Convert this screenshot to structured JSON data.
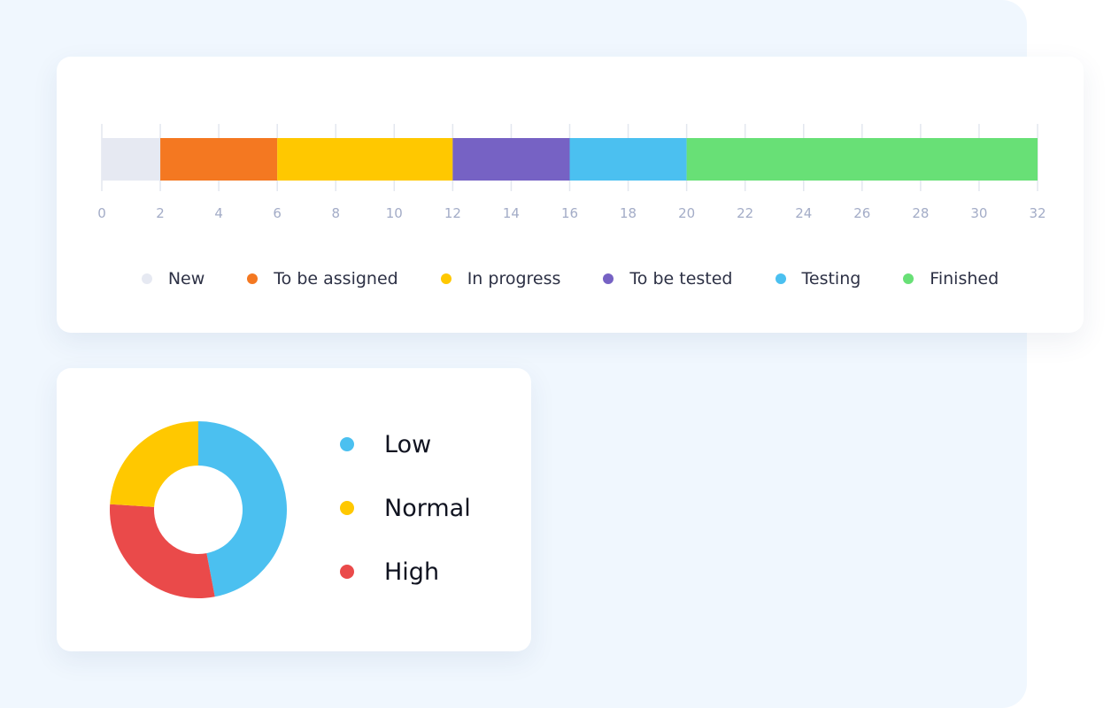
{
  "chart_data": [
    {
      "type": "bar",
      "orientation": "horizontal",
      "stacked": true,
      "xlim": [
        0,
        32
      ],
      "ticks": [
        0,
        2,
        4,
        6,
        8,
        10,
        12,
        14,
        16,
        18,
        20,
        22,
        24,
        26,
        28,
        30,
        32
      ],
      "grid": true,
      "legend_position": "bottom",
      "series": [
        {
          "name": "New",
          "value": 2,
          "color": "#e6e9f2"
        },
        {
          "name": "To be assigned",
          "value": 4,
          "color": "#f47821"
        },
        {
          "name": "In progress",
          "value": 6,
          "color": "#ffc800"
        },
        {
          "name": "To be tested",
          "value": 4,
          "color": "#7662c4"
        },
        {
          "name": "Testing",
          "value": 4,
          "color": "#4bc0f0"
        },
        {
          "name": "Finished",
          "value": 12,
          "color": "#68e076"
        }
      ]
    },
    {
      "type": "pie",
      "donut": true,
      "legend_position": "right",
      "slices": [
        {
          "label": "Low",
          "value": 47,
          "color": "#4bc0f0"
        },
        {
          "label": "High",
          "value": 29,
          "color": "#ea4a4a"
        },
        {
          "label": "Normal",
          "value": 24,
          "color": "#ffc800"
        }
      ],
      "legend": [
        {
          "label": "Low",
          "color": "#4bc0f0"
        },
        {
          "label": "Normal",
          "color": "#ffc800"
        },
        {
          "label": "High",
          "color": "#ea4a4a"
        }
      ]
    }
  ]
}
